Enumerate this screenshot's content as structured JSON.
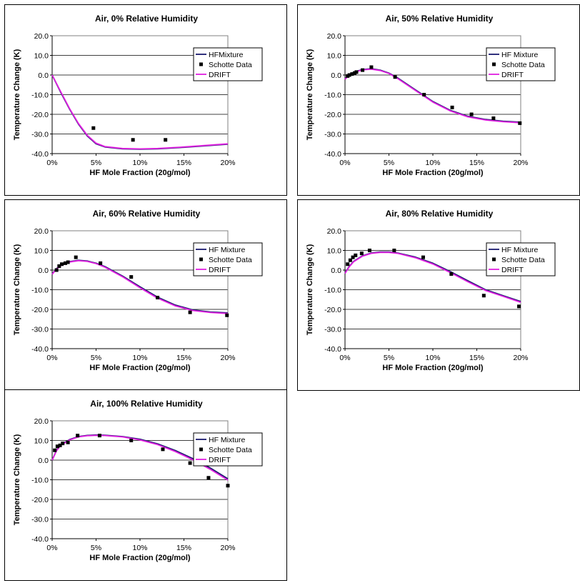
{
  "chart_data": [
    {
      "type": "line",
      "title": "Air, 0% Relative Humidity",
      "xlabel": "HF Mole Fraction (20g/mol)",
      "ylabel": "Temperature Change (K)",
      "xlim": [
        0,
        0.2
      ],
      "ylim": [
        -40,
        20
      ],
      "x_ticks": [
        "0%",
        "5%",
        "10%",
        "15%",
        "20%"
      ],
      "y_ticks": [
        "20.0",
        "10.0",
        "0.0",
        "-10.0",
        "-20.0",
        "-30.0",
        "-40.0"
      ],
      "grid": true,
      "legend_position": "top-right",
      "series": [
        {
          "name": "HFMixture",
          "kind": "line",
          "color": "#1a1a6e",
          "x": [
            0,
            0.01,
            0.02,
            0.03,
            0.04,
            0.05,
            0.06,
            0.08,
            0.1,
            0.12,
            0.15,
            0.2
          ],
          "y": [
            0,
            -9,
            -17.5,
            -25,
            -31,
            -35,
            -36.6,
            -37.6,
            -37.8,
            -37.6,
            -36.8,
            -35.2
          ]
        },
        {
          "name": "Schotte Data",
          "kind": "scatter",
          "color": "#000000",
          "x": [
            0.047,
            0.092,
            0.129
          ],
          "y": [
            -27,
            -33,
            -33
          ]
        },
        {
          "name": "DRIFT",
          "kind": "line",
          "color": "#e020e0",
          "x": [
            0,
            0.01,
            0.02,
            0.03,
            0.04,
            0.05,
            0.06,
            0.08,
            0.1,
            0.12,
            0.15,
            0.2
          ],
          "y": [
            0,
            -8.7,
            -17.2,
            -24.7,
            -30.7,
            -34.7,
            -36.4,
            -37.4,
            -37.6,
            -37.4,
            -36.6,
            -35
          ]
        }
      ]
    },
    {
      "type": "line",
      "title": "Air, 50% Relative Humidity",
      "xlabel": "HF Mole Fraction (20g/mol)",
      "ylabel": "Temperature Change (K)",
      "xlim": [
        0,
        0.2
      ],
      "ylim": [
        -40,
        20
      ],
      "x_ticks": [
        "0%",
        "5%",
        "10%",
        "15%",
        "20%"
      ],
      "y_ticks": [
        "20.0",
        "10.0",
        "0.0",
        "-10.0",
        "-20.0",
        "-30.0",
        "-40.0"
      ],
      "grid": true,
      "legend_position": "top-right",
      "series": [
        {
          "name": "HF Mixture",
          "kind": "line",
          "color": "#1a1a6e",
          "x": [
            0,
            0.005,
            0.01,
            0.02,
            0.03,
            0.04,
            0.05,
            0.06,
            0.08,
            0.1,
            0.12,
            0.14,
            0.16,
            0.18,
            0.2
          ],
          "y": [
            -2,
            0.2,
            1.5,
            2.8,
            3.2,
            2.5,
            1,
            -1.5,
            -7.5,
            -13.5,
            -18,
            -21,
            -22.6,
            -23.5,
            -24
          ]
        },
        {
          "name": "Schotte Data",
          "kind": "scatter",
          "color": "#000000",
          "x": [
            0.003,
            0.005,
            0.008,
            0.011,
            0.013,
            0.02,
            0.03,
            0.057,
            0.09,
            0.122,
            0.144,
            0.169,
            0.199
          ],
          "y": [
            -0.5,
            0,
            0.5,
            1,
            1.5,
            2.5,
            4,
            -1,
            -10,
            -16.5,
            -20,
            -22,
            -24.5
          ]
        },
        {
          "name": "DRIFT",
          "kind": "line",
          "color": "#e020e0",
          "x": [
            0,
            0.005,
            0.01,
            0.02,
            0.03,
            0.04,
            0.05,
            0.06,
            0.08,
            0.1,
            0.12,
            0.14,
            0.16,
            0.18,
            0.2
          ],
          "y": [
            -2.2,
            0,
            1.3,
            2.6,
            3,
            2.3,
            0.8,
            -1.8,
            -7.8,
            -13.8,
            -18.3,
            -21.3,
            -22.9,
            -23.8,
            -24.3
          ]
        }
      ]
    },
    {
      "type": "line",
      "title": "Air, 60% Relative Humidity",
      "xlabel": "HF Mole Fraction (20g/mol)",
      "ylabel": "Temperature Change (K)",
      "xlim": [
        0,
        0.2
      ],
      "ylim": [
        -40,
        20
      ],
      "x_ticks": [
        "0%",
        "5%",
        "10%",
        "15%",
        "20%"
      ],
      "y_ticks": [
        "20.0",
        "10.0",
        "0.0",
        "-10.0",
        "-20.0",
        "-30.0",
        "-40.0"
      ],
      "grid": true,
      "legend_position": "top-right",
      "series": [
        {
          "name": "HF Mixture",
          "kind": "line",
          "color": "#1a1a6e",
          "x": [
            0,
            0.005,
            0.01,
            0.02,
            0.03,
            0.04,
            0.05,
            0.06,
            0.08,
            0.1,
            0.12,
            0.14,
            0.16,
            0.18,
            0.2
          ],
          "y": [
            -2,
            0.8,
            2.5,
            4.3,
            5,
            4.6,
            3.5,
            1.8,
            -3,
            -8.5,
            -13.8,
            -17.8,
            -20.3,
            -21.3,
            -21.8
          ]
        },
        {
          "name": "Schotte Data",
          "kind": "scatter",
          "color": "#000000",
          "x": [
            0.005,
            0.008,
            0.011,
            0.015,
            0.018,
            0.027,
            0.055,
            0.09,
            0.12,
            0.157,
            0.199
          ],
          "y": [
            0,
            2,
            3,
            3.5,
            4,
            6.5,
            3.5,
            -3.5,
            -14,
            -21.5,
            -23
          ]
        },
        {
          "name": "DRIFT",
          "kind": "line",
          "color": "#e020e0",
          "x": [
            0,
            0.005,
            0.01,
            0.02,
            0.03,
            0.04,
            0.05,
            0.06,
            0.08,
            0.1,
            0.12,
            0.14,
            0.16,
            0.18,
            0.2
          ],
          "y": [
            -2.2,
            0.6,
            2.3,
            4.1,
            4.8,
            4.4,
            3.3,
            1.5,
            -3.4,
            -9,
            -14.3,
            -18.2,
            -20.6,
            -21.6,
            -22.1
          ]
        }
      ]
    },
    {
      "type": "line",
      "title": "Air, 80% Relative Humidity",
      "xlabel": "HF Mole Fraction (20g/mol)",
      "ylabel": "Temperature Change (K)",
      "xlim": [
        0,
        0.2
      ],
      "ylim": [
        -40,
        20
      ],
      "x_ticks": [
        "0%",
        "5%",
        "10%",
        "15%",
        "20%"
      ],
      "y_ticks": [
        "20.0",
        "10.0",
        "0.0",
        "-10.0",
        "-20.0",
        "-30.0",
        "-40.0"
      ],
      "grid": true,
      "legend_position": "top-right",
      "series": [
        {
          "name": "HF Mixture",
          "kind": "line",
          "color": "#1a1a6e",
          "x": [
            0,
            0.005,
            0.01,
            0.02,
            0.03,
            0.04,
            0.05,
            0.06,
            0.08,
            0.1,
            0.12,
            0.14,
            0.16,
            0.18,
            0.2
          ],
          "y": [
            -1.5,
            2,
            4.5,
            7.3,
            8.7,
            9.2,
            9.2,
            8.7,
            6.6,
            3.5,
            -0.8,
            -5.5,
            -10,
            -13,
            -16
          ]
        },
        {
          "name": "Schotte Data",
          "kind": "scatter",
          "color": "#000000",
          "x": [
            0.003,
            0.006,
            0.009,
            0.012,
            0.019,
            0.028,
            0.056,
            0.089,
            0.121,
            0.158,
            0.198
          ],
          "y": [
            3,
            5,
            6.5,
            7.5,
            8.5,
            10,
            10,
            6.5,
            -2,
            -13,
            -18.5
          ]
        },
        {
          "name": "DRIFT",
          "kind": "line",
          "color": "#e020e0",
          "x": [
            0,
            0.005,
            0.01,
            0.02,
            0.03,
            0.04,
            0.05,
            0.06,
            0.08,
            0.1,
            0.12,
            0.14,
            0.16,
            0.18,
            0.2
          ],
          "y": [
            -1.7,
            1.8,
            4.3,
            7.1,
            8.5,
            9,
            9,
            8.5,
            6.3,
            3.1,
            -1.3,
            -6,
            -10.4,
            -13.4,
            -16.4
          ]
        }
      ]
    },
    {
      "type": "line",
      "title": "Air, 100% Relative Humidity",
      "xlabel": "HF Mole Fraction (20g/mol)",
      "ylabel": "Temperature Change (K)",
      "xlim": [
        0,
        0.2
      ],
      "ylim": [
        -40,
        20
      ],
      "x_ticks": [
        "0%",
        "5%",
        "10%",
        "15%",
        "20%"
      ],
      "y_ticks": [
        "20.0",
        "10.0",
        "0.0",
        "-10.0",
        "-20.0",
        "-30.0",
        "-40.0"
      ],
      "grid": true,
      "legend_position": "top-right",
      "series": [
        {
          "name": "HF Mixture",
          "kind": "line",
          "color": "#1a1a6e",
          "x": [
            0,
            0.005,
            0.01,
            0.02,
            0.03,
            0.04,
            0.05,
            0.06,
            0.08,
            0.1,
            0.12,
            0.14,
            0.16,
            0.18,
            0.2
          ],
          "y": [
            0,
            5,
            7.8,
            10.5,
            12,
            12.6,
            12.8,
            12.7,
            12,
            10.6,
            8.3,
            4.9,
            0.8,
            -4,
            -9.5
          ]
        },
        {
          "name": "Schotte Data",
          "kind": "scatter",
          "color": "#000000",
          "x": [
            0.003,
            0.006,
            0.009,
            0.012,
            0.018,
            0.029,
            0.054,
            0.09,
            0.126,
            0.157,
            0.178,
            0.2
          ],
          "y": [
            5,
            7,
            7.5,
            8.5,
            9,
            12.5,
            12.5,
            10,
            5.5,
            -1.5,
            -9,
            -13
          ]
        },
        {
          "name": "DRIFT",
          "kind": "line",
          "color": "#e020e0",
          "x": [
            0,
            0.005,
            0.01,
            0.02,
            0.03,
            0.04,
            0.05,
            0.06,
            0.08,
            0.1,
            0.12,
            0.14,
            0.16,
            0.18,
            0.2
          ],
          "y": [
            0,
            4.8,
            7.6,
            10.3,
            11.8,
            12.4,
            12.6,
            12.5,
            11.8,
            10.3,
            7.9,
            4.4,
            0.2,
            -4.7,
            -10.2
          ]
        }
      ]
    }
  ]
}
